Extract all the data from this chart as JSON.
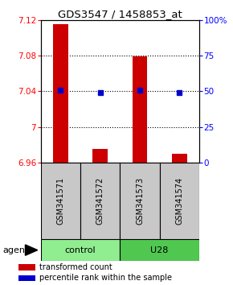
{
  "title": "GDS3547 / 1458853_at",
  "samples": [
    "GSM341571",
    "GSM341572",
    "GSM341573",
    "GSM341574"
  ],
  "bar_values": [
    7.115,
    6.975,
    7.079,
    6.97
  ],
  "bar_base": 6.96,
  "percentile_values": [
    51,
    49,
    51,
    49
  ],
  "groups": [
    {
      "label": "control",
      "samples": [
        0,
        1
      ],
      "color": "#90EE90"
    },
    {
      "label": "U28",
      "samples": [
        2,
        3
      ],
      "color": "#50C850"
    }
  ],
  "ylim_left": [
    6.96,
    7.12
  ],
  "yticks_left": [
    6.96,
    7.0,
    7.04,
    7.08,
    7.12
  ],
  "ytick_labels_left": [
    "6.96",
    "7",
    "7.04",
    "7.08",
    "7.12"
  ],
  "ylim_right": [
    0,
    100
  ],
  "yticks_right": [
    0,
    25,
    50,
    75,
    100
  ],
  "ytick_labels_right": [
    "0",
    "25",
    "50",
    "75",
    "100%"
  ],
  "bar_color": "#CC0000",
  "dot_color": "#0000CC",
  "sample_box_color": "#C8C8C8",
  "agent_label": "agent",
  "legend_bar_label": "transformed count",
  "legend_dot_label": "percentile rank within the sample",
  "grid_vals": [
    7.0,
    7.04,
    7.08
  ]
}
